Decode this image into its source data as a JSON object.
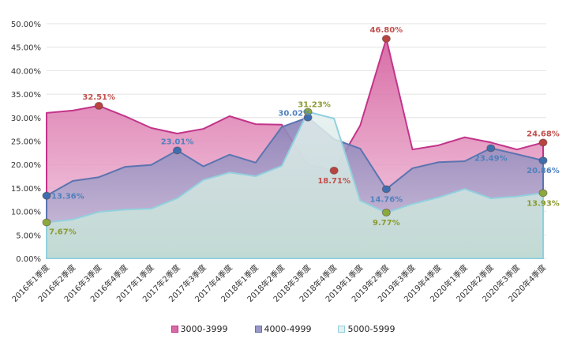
{
  "chart_data": {
    "type": "area",
    "title": "",
    "xlabel": "",
    "ylabel": "",
    "ylim": [
      0,
      50
    ],
    "ytick_step": 5,
    "ytick_labels": [
      "0.00%",
      "5.00%",
      "10.00%",
      "15.00%",
      "20.00%",
      "25.00%",
      "30.00%",
      "35.00%",
      "40.00%",
      "45.00%",
      "50.00%"
    ],
    "grid": true,
    "legend_position": "bottom",
    "categories": [
      "2016年1季度",
      "2016年2季度",
      "2016年3季度",
      "2016年4季度",
      "2017年1季度",
      "2017年2季度",
      "2017年3季度",
      "2017年4季度",
      "2018年1季度",
      "2018年2季度",
      "2018年3季度",
      "2018年4季度",
      "2019年1季度",
      "2019年2季度",
      "2019年3季度",
      "2019年4季度",
      "2020年1季度",
      "2020年2季度",
      "2020年3季度",
      "2020年4季度"
    ],
    "series": [
      {
        "name": "3000-3999",
        "line_color": "#c2348a",
        "fill_top": "#d5619f",
        "fill_bottom": "#f2c6dd",
        "marker_color": "#b8433f",
        "label_color": "#c0504d",
        "values": [
          31.0,
          31.5,
          32.51,
          30.3,
          27.8,
          26.6,
          27.6,
          30.3,
          28.6,
          28.5,
          19.9,
          18.71,
          28.3,
          46.8,
          23.2,
          24.1,
          25.8,
          24.7,
          23.2,
          24.68
        ],
        "labels": [
          {
            "index": 2,
            "text": "32.51%"
          },
          {
            "index": 11,
            "text": "18.71%"
          },
          {
            "index": 13,
            "text": "46.80%"
          },
          {
            "index": 19,
            "text": "24.68%"
          }
        ]
      },
      {
        "name": "4000-4999",
        "line_color": "#5b74b0",
        "fill_top": "#8a83b8",
        "fill_bottom": "#c9c0db",
        "marker_color": "#3d6fb0",
        "label_color": "#4f81bd",
        "values": [
          13.36,
          16.5,
          17.3,
          19.5,
          19.9,
          23.01,
          19.6,
          22.1,
          20.4,
          28.0,
          30.02,
          25.4,
          23.4,
          14.76,
          19.2,
          20.5,
          20.7,
          23.49,
          22.2,
          20.86
        ],
        "labels": [
          {
            "index": 0,
            "text": "13.36%"
          },
          {
            "index": 5,
            "text": "23.01%"
          },
          {
            "index": 10,
            "text": "30.02%"
          },
          {
            "index": 13,
            "text": "14.76%"
          },
          {
            "index": 17,
            "text": "23.49%"
          },
          {
            "index": 19,
            "text": "20.86%"
          }
        ]
      },
      {
        "name": "5000-5999",
        "line_color": "#92d0de",
        "fill_top": "#e4f0ef",
        "fill_bottom": "#bfded2",
        "marker_color": "#8aaa3c",
        "label_color": "#8a9a30",
        "values": [
          7.67,
          8.3,
          9.9,
          10.4,
          10.6,
          12.8,
          16.7,
          18.3,
          17.5,
          19.7,
          31.23,
          29.8,
          12.3,
          9.77,
          11.6,
          13.0,
          14.8,
          12.8,
          13.2,
          13.93
        ],
        "labels": [
          {
            "index": 0,
            "text": "7.67%"
          },
          {
            "index": 10,
            "text": "31.23%"
          },
          {
            "index": 13,
            "text": "9.77%"
          },
          {
            "index": 19,
            "text": "13.93%"
          }
        ]
      }
    ]
  }
}
